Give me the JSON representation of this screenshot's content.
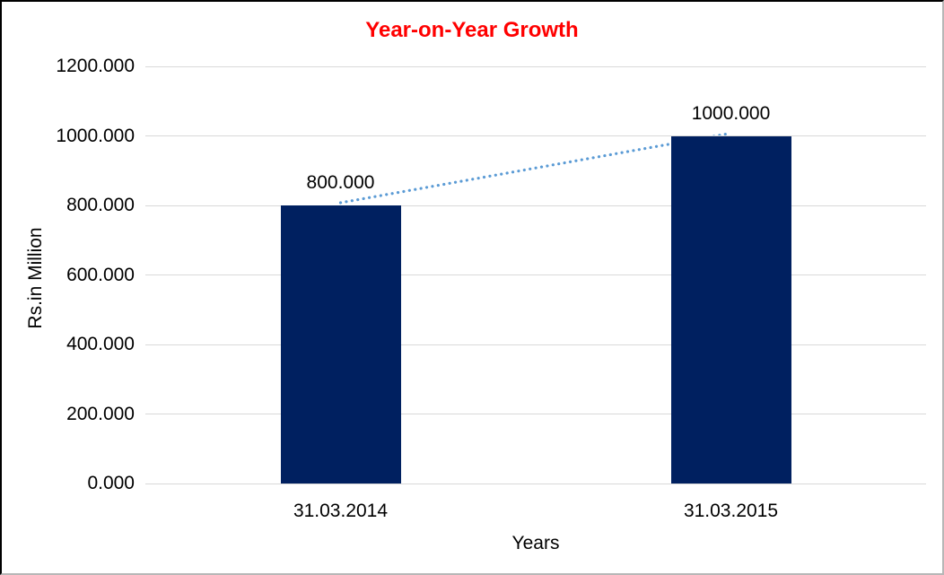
{
  "frame": {
    "background": "#ffffff",
    "border_dark": "#000000",
    "border_light": "#b7b7b7"
  },
  "chart_data": {
    "type": "bar",
    "title": "Year-on-Year Growth",
    "title_color": "#ff0000",
    "xlabel": "Years",
    "ylabel": "Rs.in Million",
    "categories": [
      "31.03.2014",
      "31.03.2015"
    ],
    "values": [
      800,
      1000
    ],
    "data_labels": [
      "800.000",
      "1000.000"
    ],
    "ylim": [
      0,
      1200
    ],
    "ytick_step": 200,
    "ytick_labels": [
      "0.000",
      "200.000",
      "400.000",
      "600.000",
      "800.000",
      "1000.000",
      "1200.000"
    ],
    "grid": true,
    "gridline_color": "#d9d9d9",
    "bar_color": "#002060",
    "text_color": "#000000",
    "legend": "none",
    "trendline": {
      "style": "dotted",
      "color": "#5b9bd5",
      "from_value": 800,
      "to_value": 1000
    }
  }
}
